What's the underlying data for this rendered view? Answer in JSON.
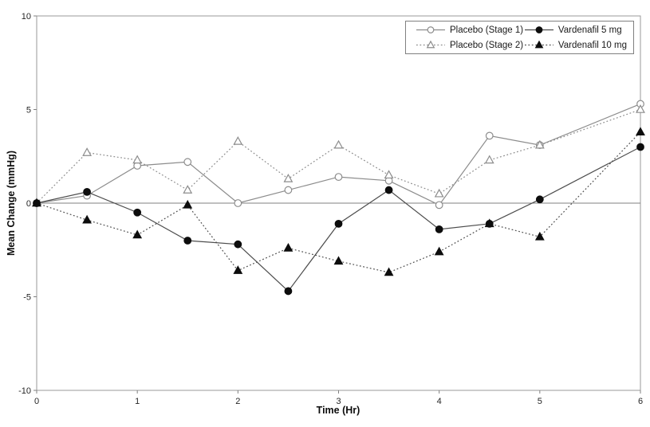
{
  "chart_data": {
    "type": "line",
    "title": "",
    "xlabel": "Time (Hr)",
    "ylabel": "Mean Change (mmHg)",
    "xlim": [
      0,
      6
    ],
    "ylim": [
      -10,
      10
    ],
    "x_ticks": [
      0,
      1,
      2,
      3,
      4,
      5,
      6
    ],
    "y_ticks": [
      10,
      5,
      0,
      -5,
      -10
    ],
    "grid": false,
    "zero_line_at_y": 0,
    "legend_position": "top-right-inside",
    "x": [
      0,
      0.5,
      1,
      1.5,
      2,
      2.5,
      3,
      3.5,
      4,
      4.5,
      5,
      6
    ],
    "series": [
      {
        "id": "placebo-stage-1",
        "name": "Placebo (Stage 1)",
        "marker": "open-circle",
        "line": "solid",
        "color": "#8c8c8c",
        "marker_fill": "#ffffff",
        "values": [
          0,
          0.4,
          2.0,
          2.2,
          0.0,
          0.7,
          1.4,
          1.2,
          -0.1,
          3.6,
          3.1,
          5.3
        ]
      },
      {
        "id": "placebo-stage-2",
        "name": "Placebo (Stage 2)",
        "marker": "open-triangle",
        "line": "dotted",
        "color": "#8c8c8c",
        "marker_fill": "#ffffff",
        "values": [
          0,
          2.7,
          2.3,
          0.7,
          3.3,
          1.3,
          3.1,
          1.5,
          0.5,
          2.3,
          3.1,
          5.0
        ]
      },
      {
        "id": "vardenafil-5mg",
        "name": "Vardenafil 5 mg",
        "marker": "filled-circle",
        "line": "solid",
        "color": "#4d4d4d",
        "marker_fill": "#0d0d0d",
        "values": [
          0,
          0.6,
          -0.5,
          -2.0,
          -2.2,
          -4.7,
          -1.1,
          0.7,
          -1.4,
          -1.1,
          0.2,
          3.0
        ]
      },
      {
        "id": "vardenafil-10mg",
        "name": "Vardenafil 10 mg",
        "marker": "filled-triangle",
        "line": "dotted",
        "color": "#4d4d4d",
        "marker_fill": "#0d0d0d",
        "values": [
          0,
          -0.9,
          -1.7,
          -0.1,
          -3.6,
          -2.4,
          -3.1,
          -3.7,
          -2.6,
          -1.1,
          -1.8,
          3.8
        ]
      }
    ],
    "legend_columns": [
      [
        0,
        1
      ],
      [
        2,
        3
      ]
    ]
  },
  "colors": {
    "background": "#ffffff",
    "frame": "#999999",
    "axis": "#808080",
    "tick_label": "#262626",
    "legend_border": "#808080",
    "legend_text": "#1a1a1a"
  }
}
